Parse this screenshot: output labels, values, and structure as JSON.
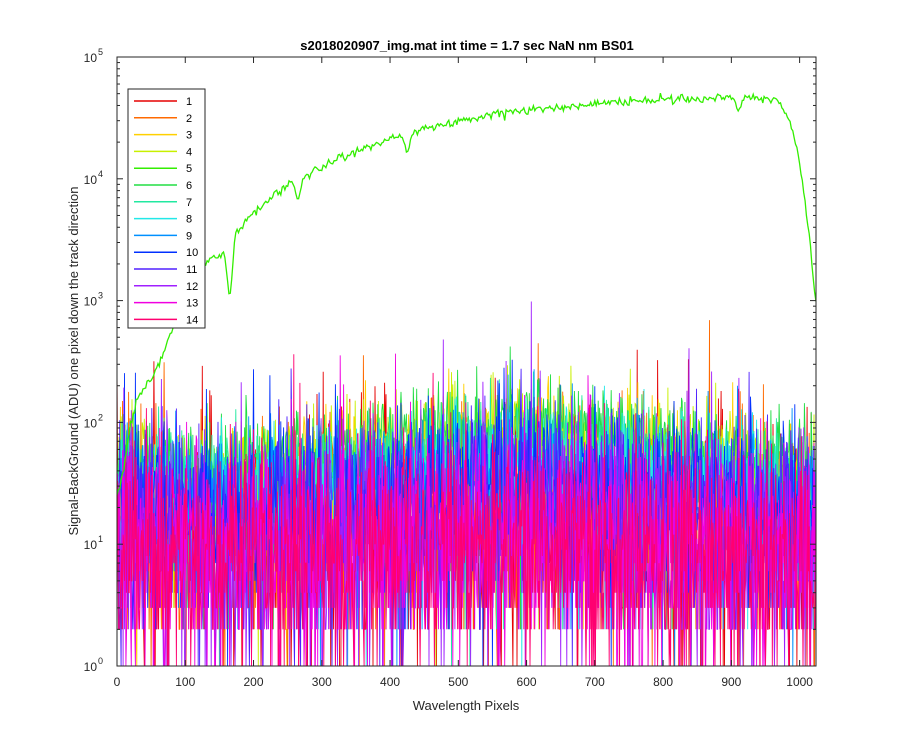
{
  "chart_data": {
    "type": "line",
    "title": "s2018020907_img.mat int time = 1.7 sec  NaN nm BS01",
    "xlabel": "Wavelength Pixels",
    "ylabel": "Signal-BackGround (ADU) one pixel down the track direction",
    "xlim": [
      0,
      1024
    ],
    "ylim": [
      1,
      100000
    ],
    "yscale": "log",
    "grid": false,
    "legend_location": "top-left",
    "x_ticks": [
      0,
      100,
      200,
      300,
      400,
      500,
      600,
      700,
      800,
      900,
      1000
    ],
    "x_tick_labels": [
      "0",
      "100",
      "200",
      "300",
      "400",
      "500",
      "600",
      "700",
      "800",
      "900",
      "1000"
    ],
    "y_ticks": [
      1,
      10,
      100,
      1000,
      10000,
      100000
    ],
    "y_tick_labels": [
      {
        "base": "10",
        "exp": "0"
      },
      {
        "base": "10",
        "exp": "1"
      },
      {
        "base": "10",
        "exp": "2"
      },
      {
        "base": "10",
        "exp": "3"
      },
      {
        "base": "10",
        "exp": "4"
      },
      {
        "base": "10",
        "exp": "5"
      }
    ],
    "series": [
      {
        "name": "1",
        "color": "#e60000",
        "kind": "noise",
        "level": 12,
        "spread": 1.1,
        "ridge": 0.0
      },
      {
        "name": "2",
        "color": "#ff6a00",
        "kind": "noise",
        "level": 14,
        "spread": 1.0,
        "ridge": 0.3
      },
      {
        "name": "3",
        "color": "#ffd000",
        "kind": "noise",
        "level": 28,
        "spread": 0.55,
        "ridge": 1.3
      },
      {
        "name": "4",
        "color": "#c8f000",
        "kind": "noise",
        "level": 30,
        "spread": 0.55,
        "ridge": 1.4
      },
      {
        "name": "5",
        "color": "#33ee00",
        "kind": "spectrum",
        "points": [
          [
            0,
            25
          ],
          [
            10,
            40
          ],
          [
            20,
            100
          ],
          [
            30,
            150
          ],
          [
            40,
            200
          ],
          [
            50,
            230
          ],
          [
            60,
            280
          ],
          [
            70,
            400
          ],
          [
            80,
            560
          ],
          [
            90,
            750
          ],
          [
            100,
            950
          ],
          [
            110,
            1300
          ],
          [
            120,
            1700
          ],
          [
            130,
            2000
          ],
          [
            140,
            2300
          ],
          [
            150,
            2300
          ],
          [
            160,
            2600
          ],
          [
            175,
            3600
          ],
          [
            200,
            5200
          ],
          [
            225,
            7000
          ],
          [
            250,
            8800
          ],
          [
            275,
            10500
          ],
          [
            300,
            12500
          ],
          [
            325,
            15000
          ],
          [
            350,
            17000
          ],
          [
            375,
            19000
          ],
          [
            400,
            21000
          ],
          [
            425,
            23500
          ],
          [
            450,
            25500
          ],
          [
            475,
            27500
          ],
          [
            500,
            29500
          ],
          [
            525,
            31500
          ],
          [
            550,
            33500
          ],
          [
            575,
            35000
          ],
          [
            600,
            36500
          ],
          [
            625,
            37500
          ],
          [
            650,
            38500
          ],
          [
            675,
            39500
          ],
          [
            700,
            41000
          ],
          [
            725,
            42000
          ],
          [
            750,
            43000
          ],
          [
            775,
            43800
          ],
          [
            800,
            44500
          ],
          [
            825,
            45000
          ],
          [
            850,
            45500
          ],
          [
            875,
            46000
          ],
          [
            900,
            46000
          ],
          [
            925,
            46000
          ],
          [
            950,
            46000
          ],
          [
            965,
            45000
          ],
          [
            975,
            40000
          ],
          [
            985,
            30000
          ],
          [
            995,
            19000
          ],
          [
            1005,
            9000
          ],
          [
            1015,
            3000
          ],
          [
            1024,
            900
          ]
        ],
        "dips": [
          [
            165,
            1000
          ],
          [
            265,
            6500
          ],
          [
            425,
            16000
          ],
          [
            910,
            36000
          ]
        ]
      },
      {
        "name": "6",
        "color": "#22dd44",
        "kind": "noise",
        "level": 38,
        "spread": 0.45,
        "ridge": 1.4
      },
      {
        "name": "7",
        "color": "#22e8a0",
        "kind": "noise",
        "level": 26,
        "spread": 0.55,
        "ridge": 1.2
      },
      {
        "name": "8",
        "color": "#22e8e8",
        "kind": "noise",
        "level": 22,
        "spread": 0.6,
        "ridge": 1.0
      },
      {
        "name": "9",
        "color": "#0090ff",
        "kind": "noise",
        "level": 20,
        "spread": 0.7,
        "ridge": 0.9
      },
      {
        "name": "10",
        "color": "#0030ff",
        "kind": "noise",
        "level": 18,
        "spread": 0.8,
        "ridge": 0.7
      },
      {
        "name": "11",
        "color": "#5020ff",
        "kind": "noise",
        "level": 14,
        "spread": 1.0,
        "ridge": 0.5
      },
      {
        "name": "12",
        "color": "#a020ff",
        "kind": "noise",
        "level": 11,
        "spread": 1.1,
        "ridge": 0.3
      },
      {
        "name": "13",
        "color": "#f000e0",
        "kind": "noise",
        "level": 9,
        "spread": 1.1,
        "ridge": 0.2
      },
      {
        "name": "14",
        "color": "#ff0070",
        "kind": "noise",
        "level": 8,
        "spread": 1.1,
        "ridge": 0.2
      }
    ]
  }
}
